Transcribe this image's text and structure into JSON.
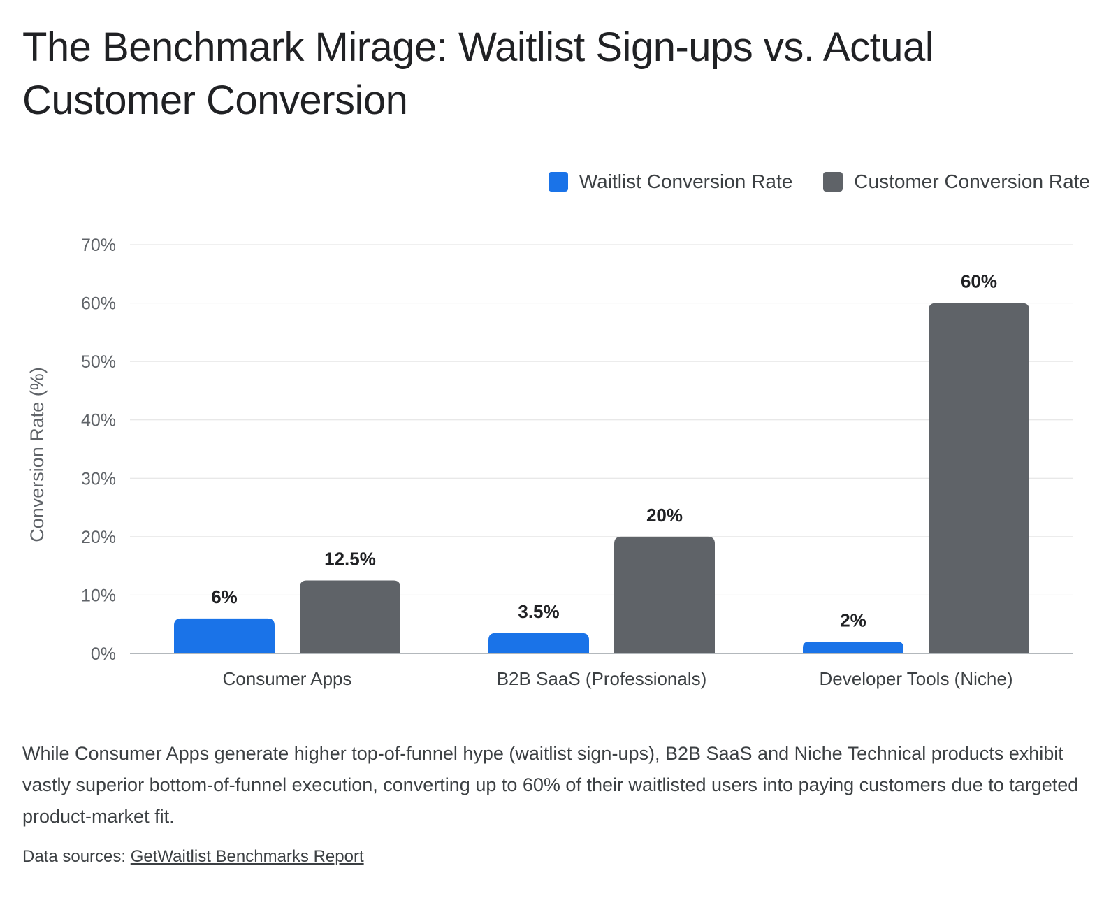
{
  "title": "The Benchmark Mirage: Waitlist Sign-ups vs. Actual Customer Conversion",
  "legend": [
    {
      "label": "Waitlist Conversion Rate",
      "color": "#1a73e8"
    },
    {
      "label": "Customer Conversion Rate",
      "color": "#5f6368"
    }
  ],
  "chart_data": {
    "type": "bar",
    "categories": [
      "Consumer Apps",
      "B2B SaaS (Professionals)",
      "Developer Tools (Niche)"
    ],
    "series": [
      {
        "name": "Waitlist Conversion Rate",
        "values": [
          6,
          3.5,
          2
        ],
        "labels": [
          "6%",
          "3.5%",
          "2%"
        ],
        "color": "#1a73e8"
      },
      {
        "name": "Customer Conversion Rate",
        "values": [
          12.5,
          20,
          60
        ],
        "labels": [
          "12.5%",
          "20%",
          "60%"
        ],
        "color": "#5f6368"
      }
    ],
    "ylabel": "Conversion Rate (%)",
    "xlabel": "",
    "ylim": [
      0,
      70
    ],
    "yticks": [
      0,
      10,
      20,
      30,
      40,
      50,
      60,
      70
    ],
    "ytick_labels": [
      "0%",
      "10%",
      "20%",
      "30%",
      "40%",
      "50%",
      "60%",
      "70%"
    ],
    "grid": true,
    "legend_position": "top-right"
  },
  "caption": "While Consumer Apps generate higher top-of-funnel hype (waitlist sign-ups), B2B SaaS and Niche Technical products exhibit vastly superior bottom-of-funnel execution, converting up to 60% of their waitlisted users into paying customers due to targeted product-market fit.",
  "source": {
    "prefix": "Data sources: ",
    "link_text": "GetWaitlist Benchmarks Report"
  }
}
